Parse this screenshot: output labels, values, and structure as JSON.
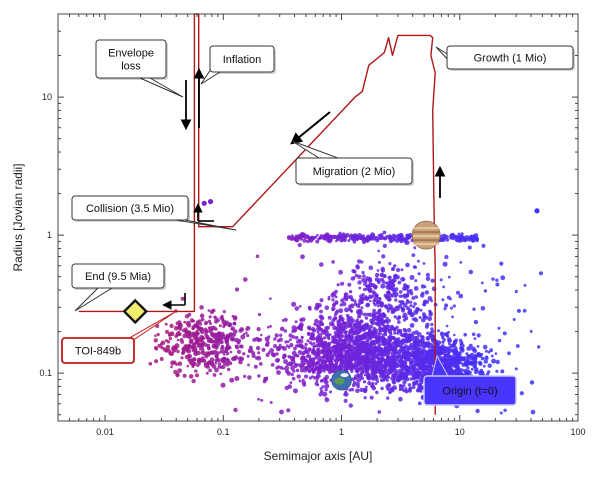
{
  "chart_data": {
    "type": "scatter",
    "title": "",
    "xlabel": "Semimajor axis [AU]",
    "ylabel": "Radius [Jovian radii]",
    "xscale": "log",
    "yscale": "log",
    "xlim": [
      0.004,
      100
    ],
    "ylim": [
      0.045,
      40
    ],
    "xticks": [
      {
        "value": 0.01,
        "label": "0.01"
      },
      {
        "value": 0.1,
        "label": "0.1"
      },
      {
        "value": 1,
        "label": "1"
      },
      {
        "value": 10,
        "label": "10"
      },
      {
        "value": 100,
        "label": "100"
      }
    ],
    "yticks": [
      {
        "value": 0.1,
        "label": "0.1"
      },
      {
        "value": 1,
        "label": "1"
      },
      {
        "value": 10,
        "label": "10"
      }
    ],
    "grid": false,
    "population_colors": {
      "inner": "#b0186f",
      "mid": "#7a20d0",
      "outer": "#3a34ff"
    },
    "track_color": "#b01818",
    "evolution_track": [
      [
        6.2,
        0.05
      ],
      [
        6.2,
        0.6
      ],
      [
        6.1,
        1.0
      ],
      [
        6.0,
        3.0
      ],
      [
        5.9,
        8.0
      ],
      [
        6.2,
        15
      ],
      [
        5.7,
        20
      ],
      [
        5.9,
        27
      ],
      [
        5.6,
        28
      ],
      [
        3.0,
        28
      ],
      [
        2.7,
        20
      ],
      [
        2.5,
        27
      ],
      [
        2.3,
        21
      ],
      [
        1.7,
        17
      ],
      [
        1.5,
        11
      ],
      [
        1.3,
        10
      ],
      [
        0.12,
        1.15
      ],
      [
        0.062,
        1.15
      ],
      [
        0.062,
        40
      ],
      [
        0.057,
        40
      ],
      [
        0.057,
        0.28
      ],
      [
        0.006,
        0.28
      ]
    ],
    "highlight_points": [
      {
        "name": "TOI-849b",
        "x": 0.018,
        "y": 0.28,
        "color": "#f4ee6e"
      },
      {
        "name": "Jupiter",
        "x": 5.2,
        "y": 1.0,
        "color": "#c9a27a"
      },
      {
        "name": "Earth",
        "x": 1.0,
        "y": 0.089,
        "color": "#5a9b5a"
      }
    ],
    "annotations": [
      {
        "label": "Envelope\nloss",
        "color": "#111"
      },
      {
        "label": "Inflation",
        "color": "#111"
      },
      {
        "label": "Growth (1 Mio)",
        "color": "#111"
      },
      {
        "label": "Migration (2 Mio)",
        "color": "#111"
      },
      {
        "label": "Collision (3.5 Mio)",
        "color": "#111"
      },
      {
        "label": "End (9.5 Mia)",
        "color": "#111"
      },
      {
        "label": "TOI-849b",
        "color": "#c41a1a"
      },
      {
        "label": "Origin (t=0)",
        "color": "#ffffff"
      }
    ]
  }
}
